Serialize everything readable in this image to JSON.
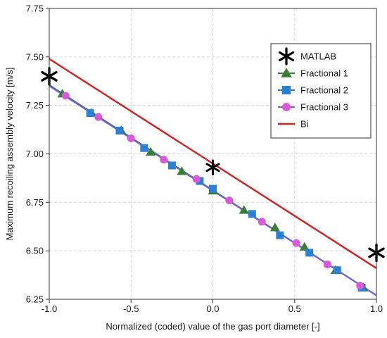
{
  "chart_data": {
    "type": "line",
    "xlabel": "Normalized (coded) value of the gas port diameter [-]",
    "ylabel": "Maximum recoiling assembly velocity [m/s]",
    "xlim": [
      -1.0,
      1.0
    ],
    "ylim": [
      6.25,
      7.75
    ],
    "xticks": [
      -1.0,
      -0.5,
      0.0,
      0.5,
      1.0
    ],
    "xtick_labels": [
      "-1.0",
      "-0.5",
      "0.0",
      "0.5",
      "1.0"
    ],
    "yticks": [
      6.25,
      6.5,
      6.75,
      7.0,
      7.25,
      7.5,
      7.75
    ],
    "ytick_labels": [
      "6.25",
      "6.50",
      "6.75",
      "7.00",
      "7.25",
      "7.50",
      "7.75"
    ],
    "grid": true,
    "legend_position": "top-right",
    "series": [
      {
        "name": "MATLAB",
        "marker": "asterisk",
        "color": "#000000",
        "x": [
          -1.0,
          0.0,
          1.0
        ],
        "y": [
          7.4,
          6.93,
          6.49
        ]
      },
      {
        "name": "Fractional 1",
        "marker": "triangle",
        "color": "#3a7d3a",
        "line_color": "#3a7d3a",
        "line_x": [
          -1.0,
          1.0
        ],
        "line_y": [
          7.355,
          6.27
        ],
        "x": [
          -0.92,
          -0.74,
          -0.56,
          -0.38,
          -0.19,
          0.0,
          0.19,
          0.38,
          0.56,
          0.75,
          0.92
        ],
        "y": [
          7.31,
          7.21,
          7.12,
          7.01,
          6.91,
          6.81,
          6.71,
          6.62,
          6.52,
          6.4,
          6.31
        ]
      },
      {
        "name": "Fractional 2",
        "marker": "square",
        "color": "#2b7fd4",
        "line_color": "#2b7fd4",
        "line_x": [
          -1.0,
          1.0
        ],
        "line_y": [
          7.35,
          6.27
        ],
        "x": [
          -0.75,
          -0.57,
          -0.42,
          -0.25,
          -0.08,
          0.0,
          0.24,
          0.41,
          0.59,
          0.76,
          0.91
        ],
        "y": [
          7.21,
          7.12,
          7.03,
          6.94,
          6.86,
          6.82,
          6.69,
          6.58,
          6.49,
          6.4,
          6.31
        ]
      },
      {
        "name": "Fractional 3",
        "marker": "circle",
        "color": "#d95ad9",
        "line_color": "#7a5ce0",
        "line_x": [
          -1.0,
          1.0
        ],
        "line_y": [
          7.35,
          6.27
        ],
        "x": [
          -0.9,
          -0.7,
          -0.5,
          -0.3,
          -0.1,
          0.1,
          0.3,
          0.51,
          0.7,
          0.9
        ],
        "y": [
          7.3,
          7.19,
          7.08,
          6.97,
          6.87,
          6.76,
          6.65,
          6.54,
          6.43,
          6.32
        ]
      },
      {
        "name": "Bi",
        "marker": "none",
        "color": "#d42020",
        "line_color": "#d42020",
        "line_x": [
          -1.0,
          1.0
        ],
        "line_y": [
          7.49,
          6.41
        ]
      }
    ]
  }
}
